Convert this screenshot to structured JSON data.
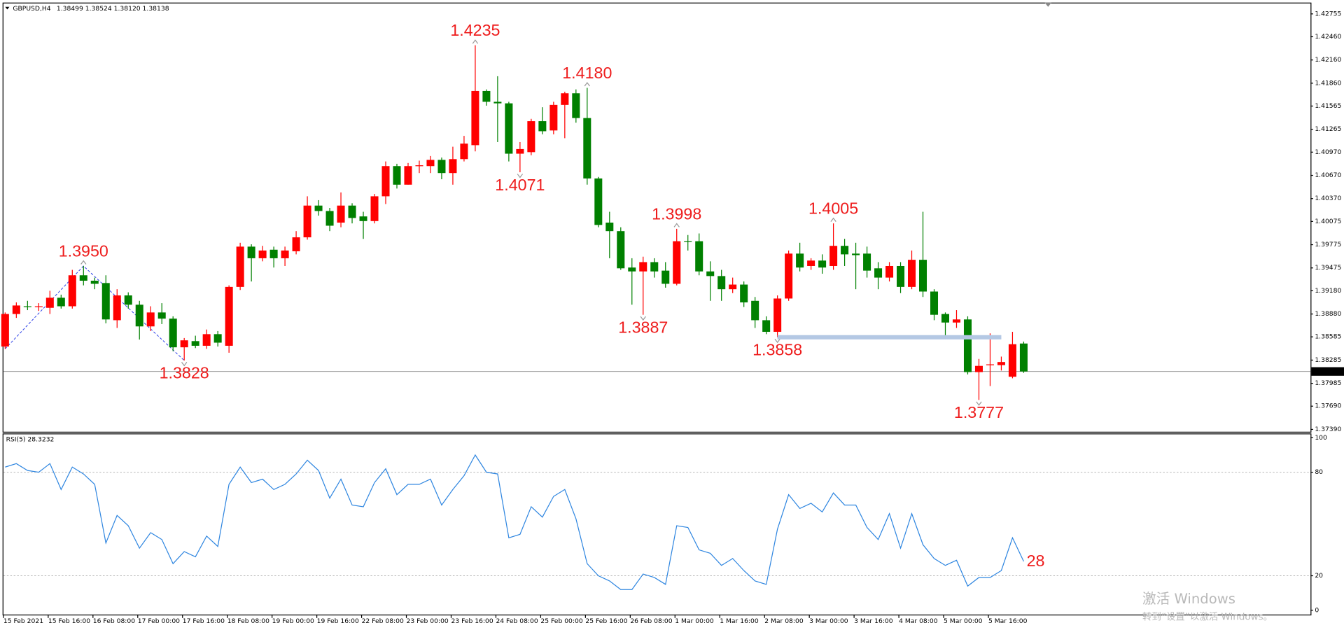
{
  "chart_data": [
    {
      "type": "candlestick",
      "title": "GBPUSD,H4",
      "subtitle": "1.38499 1.38524 1.38120 1.38138",
      "categories": [
        "15 Feb 2021",
        null,
        null,
        null,
        "15 Feb 16:00",
        null,
        null,
        null,
        "16 Feb 08:00",
        null,
        null,
        null,
        "17 Feb 00:00",
        null,
        null,
        null,
        "17 Feb 16:00",
        null,
        null,
        null,
        "18 Feb 08:00",
        null,
        null,
        null,
        "19 Feb 00:00",
        null,
        null,
        null,
        "19 Feb 16:00",
        null,
        null,
        null,
        "22 Feb 08:00",
        null,
        null,
        null,
        "23 Feb 00:00",
        null,
        null,
        null,
        "23 Feb 16:00",
        null,
        null,
        null,
        "24 Feb 08:00",
        null,
        null,
        null,
        "25 Feb 00:00",
        null,
        null,
        null,
        "25 Feb 16:00",
        null,
        null,
        null,
        "26 Feb 08:00",
        null,
        null,
        null,
        "1 Mar 00:00",
        null,
        null,
        null,
        "1 Mar 16:00",
        null,
        null,
        null,
        "2 Mar 08:00",
        null,
        null,
        null,
        "3 Mar 00:00",
        null,
        null,
        null,
        "3 Mar 16:00",
        null,
        null,
        null,
        "4 Mar 08:00",
        null,
        null,
        null,
        "5 Mar 00:00",
        null,
        null,
        null,
        "5 Mar 16:00",
        null,
        null,
        null
      ],
      "open": [
        1.3846,
        1.3888,
        1.3898,
        1.3897,
        1.3896,
        1.3909,
        1.3898,
        1.3938,
        1.3931,
        1.3928,
        1.388,
        1.3912,
        1.39,
        1.3872,
        1.389,
        1.3882,
        1.3845,
        1.3853,
        1.3847,
        1.3862,
        1.3847,
        1.3923,
        1.3975,
        1.396,
        1.3971,
        1.396,
        1.3969,
        1.3987,
        1.4028,
        1.4021,
        1.4006,
        1.4028,
        1.4014,
        1.4008,
        1.404,
        1.4079,
        1.4055,
        1.4079,
        1.4079,
        1.4087,
        1.407,
        1.4088,
        1.4106,
        1.4176,
        1.4162,
        1.416,
        1.4095,
        1.4097,
        1.4137,
        1.4125,
        1.4158,
        1.4173,
        1.4141,
        1.4063,
        1.4006,
        1.3995,
        1.3948,
        1.3943,
        1.3955,
        1.3944,
        1.3927,
        1.3982,
        1.3982,
        1.3943,
        1.3937,
        1.392,
        1.3926,
        1.3905,
        1.388,
        1.3865,
        1.3908,
        1.3966,
        1.395,
        1.3957,
        1.395,
        1.3976,
        1.3966,
        1.3966,
        1.3947,
        1.3935,
        1.395,
        1.3923,
        1.3958,
        1.3917,
        1.3888,
        1.3877,
        1.3881,
        1.3813,
        1.3822,
        1.3822,
        1.3807,
        1.38499
      ],
      "high": [
        1.389,
        1.3903,
        1.3905,
        1.3902,
        1.3918,
        1.3913,
        1.3945,
        1.395,
        1.3935,
        1.3938,
        1.392,
        1.3916,
        1.3905,
        1.3898,
        1.3902,
        1.3885,
        1.3857,
        1.386,
        1.3868,
        1.3866,
        1.3925,
        1.398,
        1.3978,
        1.3976,
        1.3975,
        1.3975,
        1.3995,
        1.404,
        1.4035,
        1.4025,
        1.4045,
        1.4031,
        1.402,
        1.4043,
        1.4085,
        1.4082,
        1.4083,
        1.4086,
        1.4092,
        1.409,
        1.4104,
        1.4118,
        1.4235,
        1.4178,
        1.4195,
        1.4162,
        1.411,
        1.414,
        1.4155,
        1.4162,
        1.4175,
        1.4178,
        1.418,
        1.4065,
        1.402,
        1.4,
        1.396,
        1.3962,
        1.396,
        1.3955,
        1.3998,
        1.399,
        1.3992,
        1.3956,
        1.3945,
        1.3935,
        1.393,
        1.391,
        1.3885,
        1.3912,
        1.397,
        1.398,
        1.396,
        1.3965,
        1.4005,
        1.3985,
        1.398,
        1.3975,
        1.3955,
        1.3955,
        1.3955,
        1.397,
        1.402,
        1.392,
        1.389,
        1.3893,
        1.3885,
        1.383,
        1.3863,
        1.3833,
        1.3865,
        1.38524
      ],
      "low": [
        1.3843,
        1.3883,
        1.3893,
        1.3892,
        1.3888,
        1.3895,
        1.3895,
        1.3925,
        1.392,
        1.3876,
        1.387,
        1.3895,
        1.3855,
        1.3866,
        1.3875,
        1.384,
        1.3828,
        1.3844,
        1.3843,
        1.3846,
        1.3838,
        1.3919,
        1.393,
        1.3956,
        1.3948,
        1.395,
        1.3965,
        1.3984,
        1.4015,
        1.3995,
        1.4,
        1.4005,
        1.3985,
        1.4005,
        1.403,
        1.405,
        1.4055,
        1.407,
        1.407,
        1.4062,
        1.4055,
        1.4085,
        1.4098,
        1.4157,
        1.411,
        1.4085,
        1.4071,
        1.4093,
        1.412,
        1.412,
        1.4115,
        1.4135,
        1.4055,
        1.4,
        1.396,
        1.3945,
        1.39,
        1.3887,
        1.3935,
        1.3922,
        1.3925,
        1.397,
        1.3938,
        1.3905,
        1.3905,
        1.3915,
        1.3897,
        1.387,
        1.3862,
        1.3858,
        1.3905,
        1.3943,
        1.3945,
        1.394,
        1.3945,
        1.395,
        1.392,
        1.3935,
        1.392,
        1.393,
        1.3915,
        1.392,
        1.391,
        1.388,
        1.386,
        1.387,
        1.381,
        1.3777,
        1.3795,
        1.3815,
        1.3805,
        1.3812
      ],
      "close": [
        1.3888,
        1.3899,
        1.3897,
        1.3898,
        1.3909,
        1.3898,
        1.3938,
        1.3931,
        1.3927,
        1.3881,
        1.3912,
        1.39,
        1.3872,
        1.389,
        1.3882,
        1.3845,
        1.3854,
        1.3847,
        1.3862,
        1.3851,
        1.3923,
        1.3975,
        1.396,
        1.397,
        1.396,
        1.397,
        1.3987,
        1.4028,
        1.4021,
        1.4002,
        1.4028,
        1.4012,
        1.4008,
        1.404,
        1.4079,
        1.4055,
        1.4079,
        1.408,
        1.4087,
        1.407,
        1.4088,
        1.4108,
        1.4176,
        1.4162,
        1.416,
        1.4095,
        1.4101,
        1.4137,
        1.4124,
        1.4158,
        1.4173,
        1.4141,
        1.4063,
        1.4003,
        1.3995,
        1.3947,
        1.3943,
        1.3955,
        1.3943,
        1.3927,
        1.3982,
        1.3981,
        1.3943,
        1.3937,
        1.392,
        1.3926,
        1.3903,
        1.388,
        1.3865,
        1.3908,
        1.3966,
        1.3948,
        1.3957,
        1.3948,
        1.3976,
        1.3965,
        1.3964,
        1.3944,
        1.3935,
        1.395,
        1.3923,
        1.3958,
        1.3917,
        1.3887,
        1.3877,
        1.3881,
        1.3813,
        1.3821,
        1.3823,
        1.3826,
        1.3849,
        1.38138
      ],
      "up_color": "#ff0000",
      "down_color": "#008000",
      "ylim": [
        1.3736,
        1.4289
      ],
      "yticks": [
        1.42755,
        {
          "value": 1.4246,
          "label": "1.42460"
        },
        {
          "value": 1.4216,
          "label": "1.42160"
        },
        {
          "value": 1.4186,
          "label": "1.41860"
        },
        1.41565,
        1.41265,
        {
          "value": 1.4097,
          "label": "1.40970"
        },
        {
          "value": 1.4067,
          "label": "1.40670"
        },
        {
          "value": 1.4037,
          "label": "1.40370"
        },
        1.40075,
        1.39775,
        1.39475,
        {
          "value": 1.3918,
          "label": "1.39180"
        },
        {
          "value": 1.3888,
          "label": "1.38880"
        },
        1.38585,
        1.38285,
        1.37985,
        {
          "value": 1.3769,
          "label": "1.37690"
        },
        {
          "value": 1.3739,
          "label": "1.37390"
        }
      ],
      "last_price": 1.38138,
      "annotations": [
        {
          "value": 1.395,
          "label": "1.3950"
        },
        {
          "value": 1.3828,
          "label": "1.3828"
        },
        {
          "value": 1.4235,
          "label": "1.4235"
        },
        {
          "value": 1.4071,
          "label": "1.4071"
        },
        {
          "value": 1.418,
          "label": "1.4180"
        },
        {
          "value": 1.3887,
          "label": "1.3887"
        },
        {
          "value": 1.3998,
          "label": "1.3998"
        },
        {
          "value": 1.3858,
          "label": "1.3858"
        },
        {
          "value": 1.4005,
          "label": "1.4005"
        },
        {
          "value": 1.3777,
          "label": "1.3777"
        }
      ],
      "annotation_color": "#ee1c1c"
    },
    {
      "type": "line",
      "title": "RSI(5) 28.3232",
      "color": "#2f86e0",
      "values": [
        83,
        85,
        81,
        80,
        85,
        70,
        83,
        79,
        73,
        39,
        55,
        49,
        36,
        45,
        41,
        27,
        34,
        31,
        43,
        37,
        73,
        83,
        74,
        76,
        70,
        73,
        79,
        87,
        81,
        65,
        76,
        61,
        60,
        74,
        82,
        67,
        73,
        73,
        76,
        61,
        70,
        78,
        90,
        80,
        79,
        42,
        44,
        60,
        54,
        66,
        70,
        53,
        27,
        20,
        17,
        12,
        12,
        21,
        19,
        15,
        49,
        48,
        35,
        33,
        26,
        30,
        23,
        17,
        15,
        47,
        67,
        59,
        62,
        57,
        68,
        61,
        61,
        48,
        41,
        56,
        36,
        56,
        38,
        30,
        26,
        29,
        14,
        19,
        19,
        23,
        42,
        28.3232
      ],
      "ylim": [
        0,
        100
      ],
      "yticks": [
        0,
        20,
        80,
        100
      ],
      "annotations": [
        28
      ],
      "annotation_color": "#ee1c1c"
    }
  ],
  "watermark": {
    "title": "激活 Windows",
    "subtitle": "转到“设置”以激活 Windows。"
  }
}
